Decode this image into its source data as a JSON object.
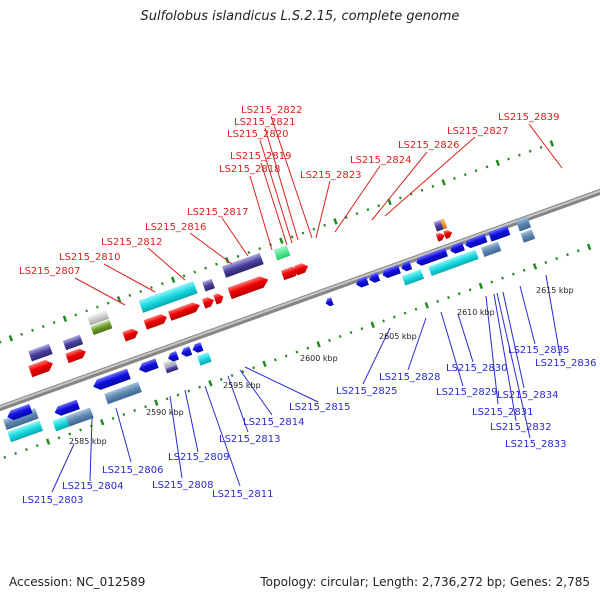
{
  "title": "Sulfolobus islandicus L.S.2.15, complete genome",
  "footer": {
    "accession": "Accession: NC_012589",
    "topology": "Topology: circular; Length: 2,736,272 bp; Genes: 2,785"
  },
  "colors": {
    "backbone": "#8a8a8a",
    "tick": "#1e8c1e",
    "forward_label": "#dd1f1f",
    "reverse_label": "#2a2ad0"
  },
  "scale_labels": [
    "2585 kbp",
    "2590 kbp",
    "2595 kbp",
    "2600 kbp",
    "2605 kbp",
    "2610 kbp",
    "2615 kbp"
  ],
  "forward_genes": [
    "LS215_2807",
    "LS215_2810",
    "LS215_2812",
    "LS215_2816",
    "LS215_2817",
    "LS215_2818",
    "LS215_2819",
    "LS215_2820",
    "LS215_2821",
    "LS215_2822",
    "LS215_2823",
    "LS215_2824",
    "LS215_2826",
    "LS215_2827",
    "LS215_2839"
  ],
  "reverse_genes": [
    "LS215_2803",
    "LS215_2804",
    "LS215_2806",
    "LS215_2808",
    "LS215_2809",
    "LS215_2811",
    "LS215_2813",
    "LS215_2814",
    "LS215_2815",
    "LS215_2825",
    "LS215_2828",
    "LS215_2829",
    "LS215_2830",
    "LS215_2831",
    "LS215_2832",
    "LS215_2833",
    "LS215_2834",
    "LS215_2835",
    "LS215_2836"
  ]
}
